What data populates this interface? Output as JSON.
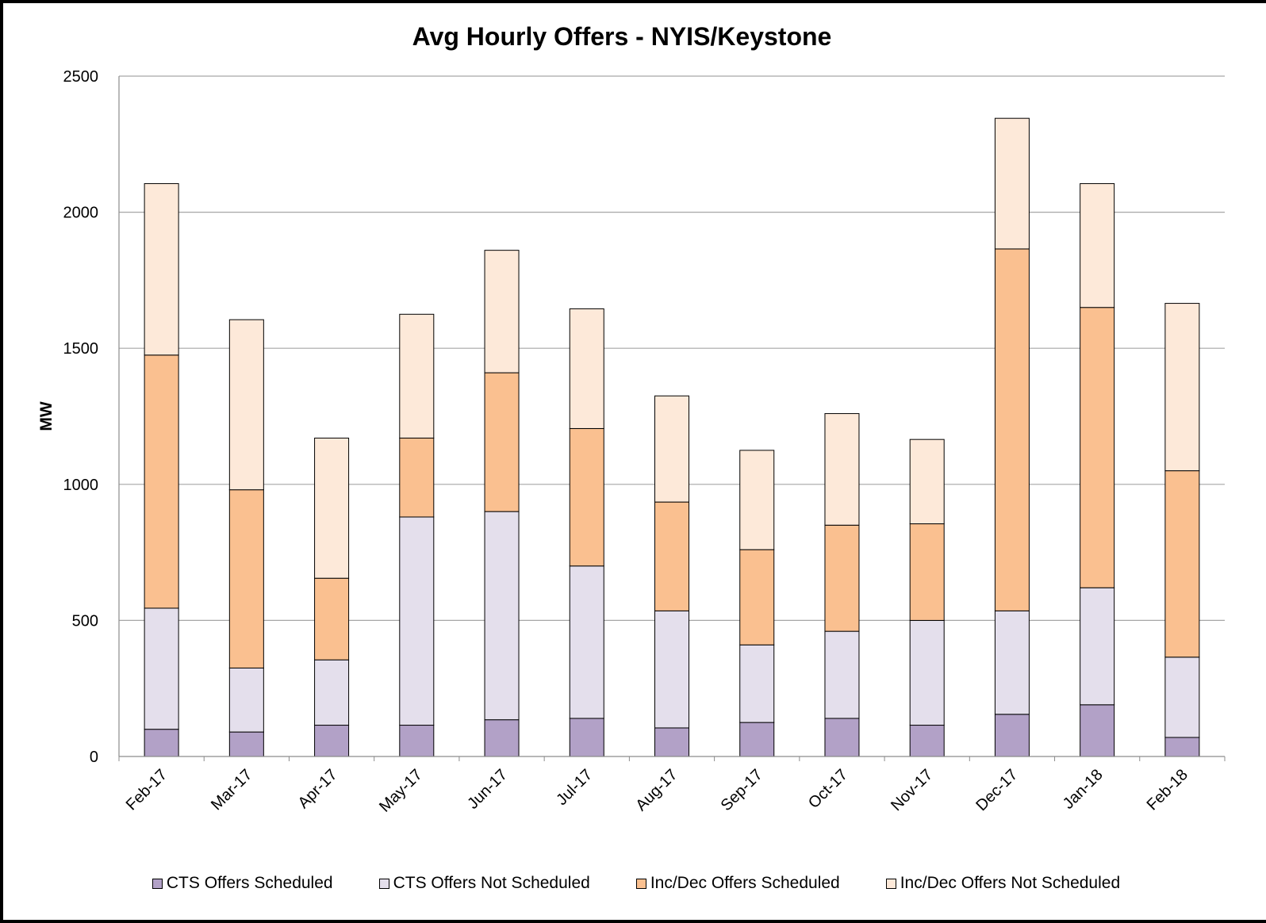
{
  "chart_data": {
    "type": "bar",
    "stacked": true,
    "title": "Avg Hourly Offers - NYIS/Keystone",
    "xlabel": "",
    "ylabel": "MW",
    "ylim": [
      0,
      2500
    ],
    "yticks": [
      0,
      500,
      1000,
      1500,
      2000,
      2500
    ],
    "grid": true,
    "legend_position": "bottom",
    "categories": [
      "Feb-17",
      "Mar-17",
      "Apr-17",
      "May-17",
      "Jun-17",
      "Jul-17",
      "Aug-17",
      "Sep-17",
      "Oct-17",
      "Nov-17",
      "Dec-17",
      "Jan-18",
      "Feb-18"
    ],
    "series": [
      {
        "name": "CTS Offers Scheduled",
        "color": "#b2a1c7",
        "values": [
          100,
          90,
          115,
          115,
          135,
          140,
          105,
          125,
          140,
          115,
          155,
          190,
          70
        ]
      },
      {
        "name": "CTS Offers Not Scheduled",
        "color": "#e4dfec",
        "values": [
          445,
          235,
          240,
          765,
          765,
          560,
          430,
          285,
          320,
          385,
          380,
          430,
          295
        ]
      },
      {
        "name": "Inc/Dec Offers Scheduled",
        "color": "#fac090",
        "values": [
          930,
          655,
          300,
          290,
          510,
          505,
          400,
          350,
          390,
          355,
          1330,
          1030,
          685
        ]
      },
      {
        "name": "Inc/Dec Offers Not Scheduled",
        "color": "#fde9d9",
        "values": [
          630,
          625,
          515,
          455,
          450,
          440,
          390,
          365,
          410,
          310,
          480,
          455,
          615
        ]
      }
    ]
  }
}
